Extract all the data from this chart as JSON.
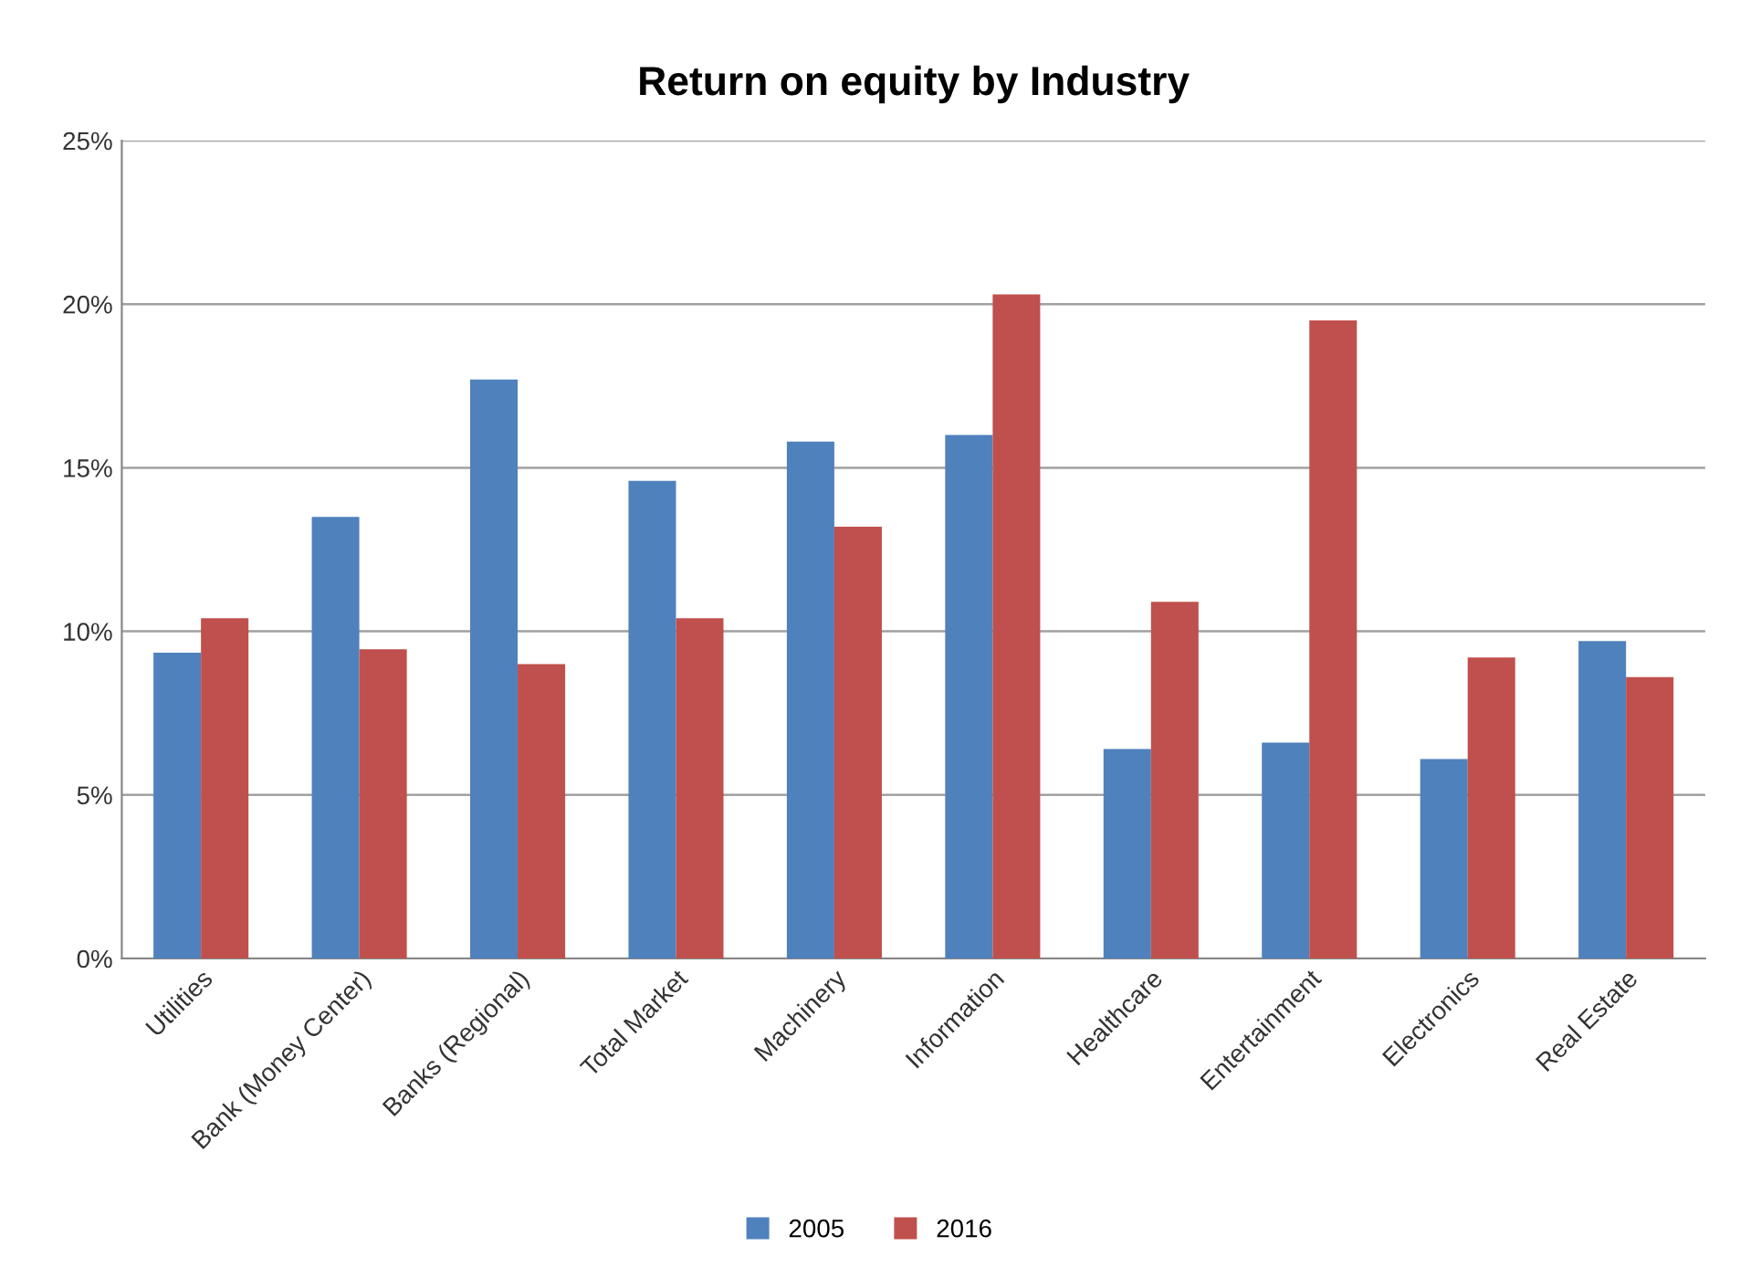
{
  "chart_data": {
    "type": "bar",
    "title": "Return on equity by Industry",
    "categories": [
      "Utilities",
      "Bank (Money Center)",
      "Banks (Regional)",
      "Total Market",
      "Machinery",
      "Information",
      "Healthcare",
      "Entertainment",
      "Electronics",
      "Real Estate"
    ],
    "series": [
      {
        "name": "2005",
        "color": "#4f81bd",
        "values": [
          9.35,
          13.5,
          17.7,
          14.6,
          15.8,
          16.0,
          6.4,
          6.6,
          6.1,
          9.7
        ]
      },
      {
        "name": "2016",
        "color": "#c0504d",
        "values": [
          10.4,
          9.45,
          9.0,
          10.4,
          13.2,
          20.3,
          10.9,
          19.5,
          9.2,
          8.6
        ]
      }
    ],
    "ylim": [
      0,
      25
    ],
    "yticks": [
      {
        "value": 0,
        "label": "0%"
      },
      {
        "value": 5,
        "label": "5%"
      },
      {
        "value": 10,
        "label": "10%"
      },
      {
        "value": 15,
        "label": "15%"
      },
      {
        "value": 20,
        "label": "20%"
      },
      {
        "value": 25,
        "label": "25%"
      }
    ],
    "grid": "y",
    "legend": "bottom"
  }
}
